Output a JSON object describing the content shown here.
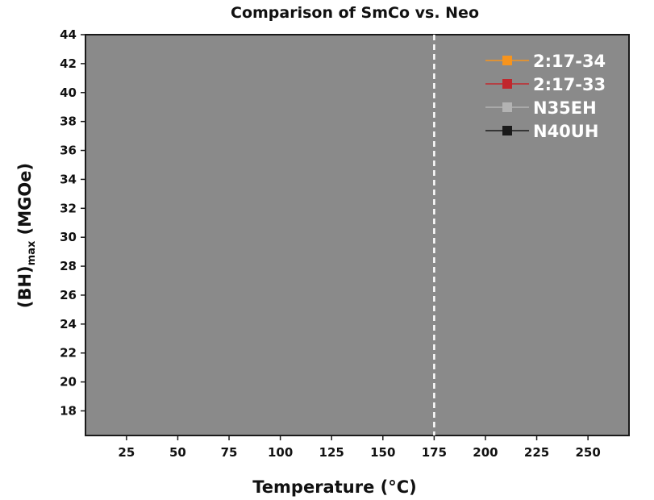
{
  "chart_data": {
    "type": "line",
    "title": "Comparison of SmCo vs. Neo",
    "xlabel": "Temperature (°C)",
    "ylabel": {
      "main": "(BH)",
      "subscript": "max",
      "unit": " (MGOe)"
    },
    "x_ticks": [
      25,
      50,
      75,
      100,
      125,
      150,
      175,
      200,
      225,
      250
    ],
    "y_ticks": [
      18,
      20,
      22,
      24,
      26,
      28,
      30,
      32,
      34,
      36,
      38,
      40,
      42,
      44
    ],
    "xlim": [
      5,
      270
    ],
    "ylim": [
      16.3,
      44
    ],
    "plot_background": "#8a8a8a",
    "reference_line": {
      "x": 175,
      "style": "dashed",
      "color": "#ffffff"
    },
    "legend_position": "top-right",
    "series": [
      {
        "name": "2:17-34",
        "color": "#f7941d",
        "x": [],
        "y": []
      },
      {
        "name": "2:17-33",
        "color": "#c1272d",
        "x": [],
        "y": []
      },
      {
        "name": "N35EH",
        "color": "#b3b3b3",
        "x": [],
        "y": []
      },
      {
        "name": "N40UH",
        "color": "#1a1a1a",
        "x": [],
        "y": []
      }
    ]
  }
}
